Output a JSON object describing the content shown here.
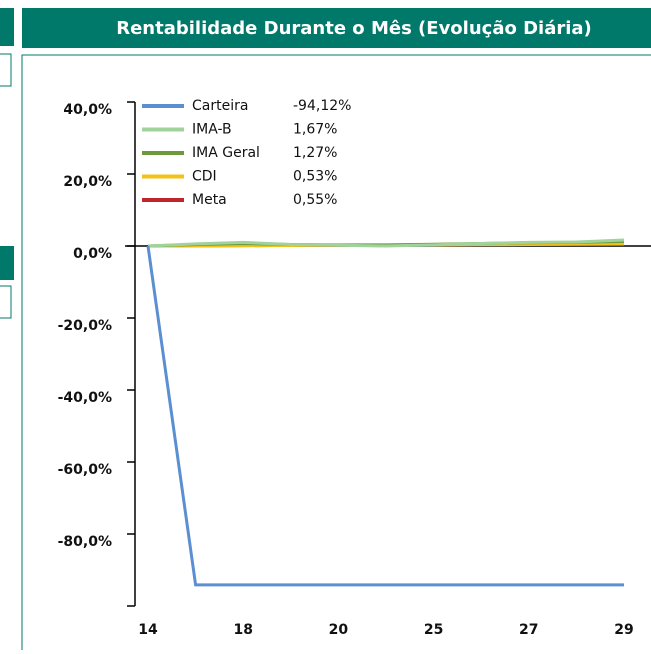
{
  "chart_data": {
    "type": "line",
    "title": "Rentabilidade Durante o Mês (Evolução Diária)",
    "categories": [
      "14",
      null,
      "18",
      null,
      "20",
      null,
      "25",
      null,
      "27",
      null,
      "29"
    ],
    "series": [
      {
        "name": "Carteira",
        "legend_value": "-94,12%",
        "color": "#5b8fd1",
        "values": [
          0,
          -94.12,
          -94.12,
          -94.12,
          -94.12,
          -94.12,
          -94.12,
          -94.12,
          -94.12,
          -94.12,
          -94.12
        ]
      },
      {
        "name": "IMA-B",
        "legend_value": "1,67%",
        "color": "#9fd39b",
        "values": [
          0,
          0.6,
          1.0,
          0.4,
          0.2,
          0.0,
          0.3,
          0.7,
          1.0,
          1.1,
          1.67
        ]
      },
      {
        "name": "IMA Geral",
        "legend_value": "1,27%",
        "color": "#6e9a3c",
        "values": [
          0,
          0.4,
          0.7,
          0.4,
          0.3,
          0.3,
          0.5,
          0.7,
          0.9,
          1.0,
          1.27
        ]
      },
      {
        "name": "CDI",
        "legend_value": "0,53%",
        "color": "#f2c21b",
        "values": [
          0,
          0.05,
          0.1,
          0.15,
          0.2,
          0.25,
          0.3,
          0.37,
          0.42,
          0.48,
          0.53
        ]
      },
      {
        "name": "Meta",
        "legend_value": "0,55%",
        "color": "#c0272d",
        "values": [
          0,
          0.06,
          0.11,
          0.16,
          0.21,
          0.27,
          0.32,
          0.38,
          0.44,
          0.5,
          0.55
        ]
      }
    ],
    "ylim": [
      -100,
      40
    ],
    "yticks": [
      {
        "value": 40,
        "label": "40,0%"
      },
      {
        "value": 20,
        "label": "20,0%"
      },
      {
        "value": 0,
        "label": "0,0%"
      },
      {
        "value": -20,
        "label": "-20,0%"
      },
      {
        "value": -40,
        "label": "-40,0%"
      },
      {
        "value": -60,
        "label": "-60,0%"
      },
      {
        "value": -80,
        "label": "-80,0%"
      }
    ]
  }
}
